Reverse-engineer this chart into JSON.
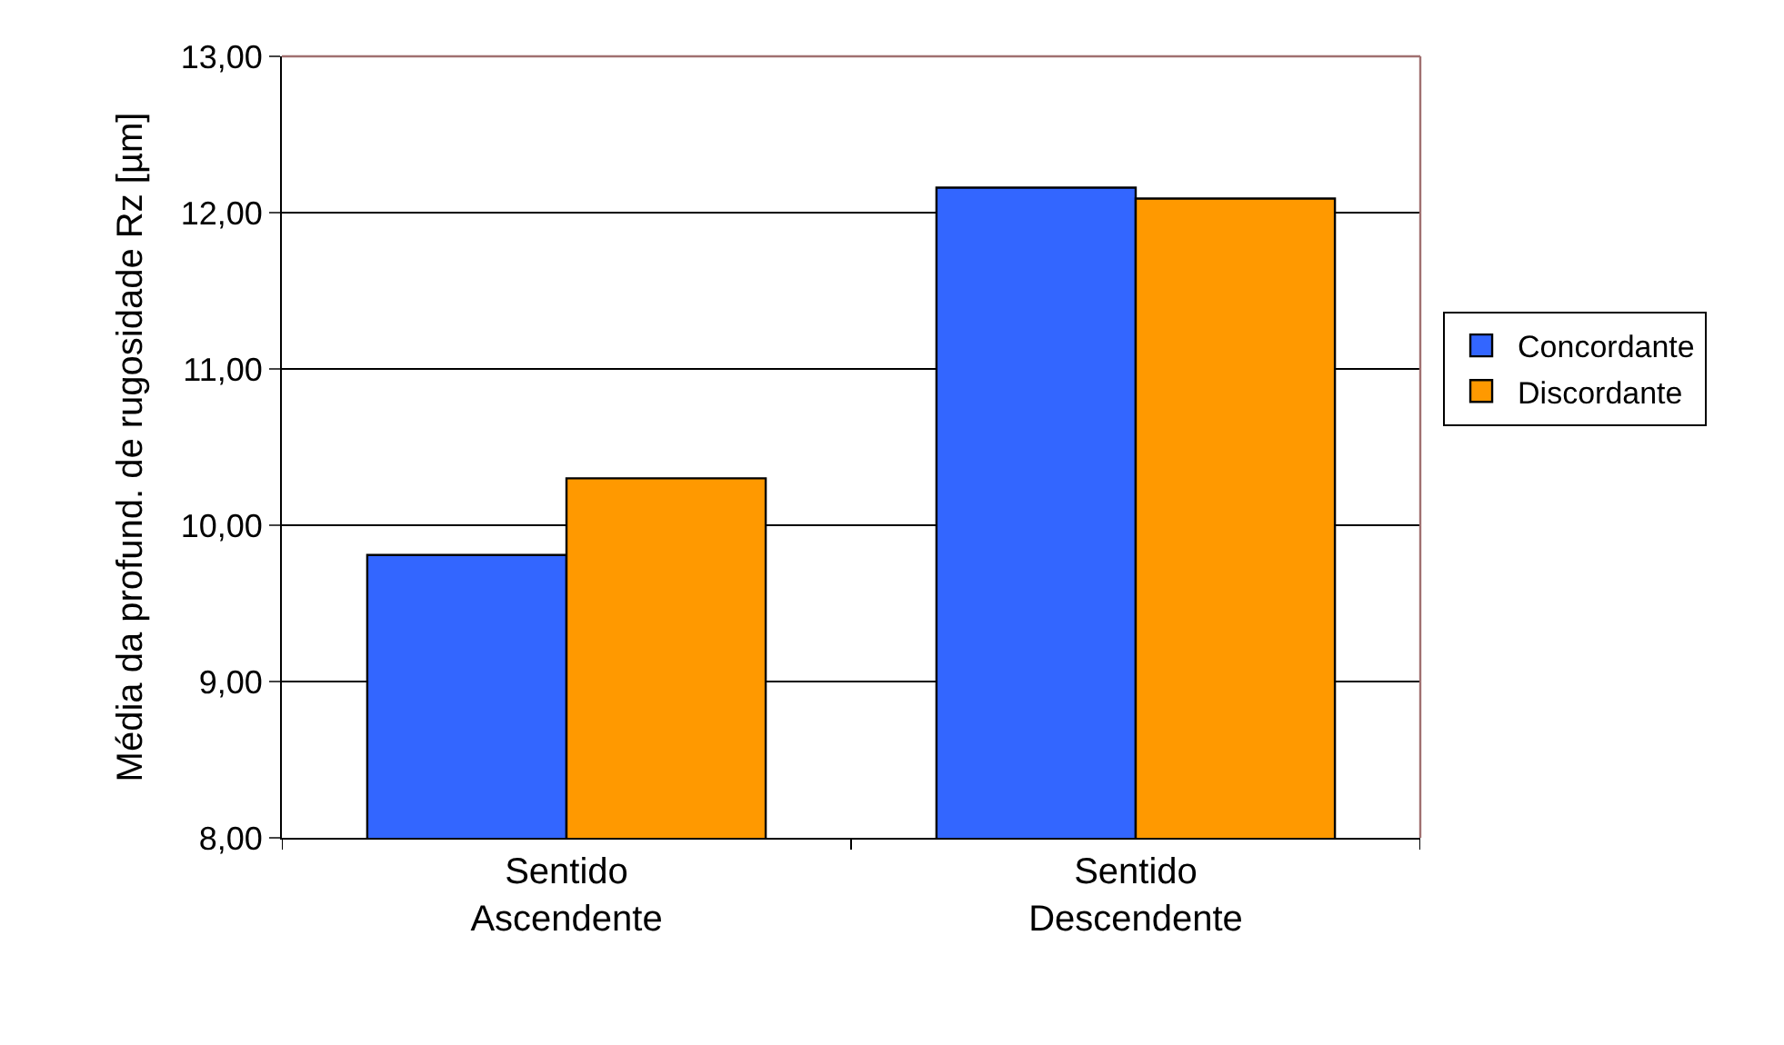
{
  "chart_data": {
    "type": "bar",
    "categories": [
      "Sentido\nAscendente",
      "Sentido\nDescendente"
    ],
    "series": [
      {
        "name": "Concordante",
        "color": "#3366ff",
        "values": [
          9.81,
          12.16
        ]
      },
      {
        "name": "Discordante",
        "color": "#ff9900",
        "values": [
          10.3,
          12.09
        ]
      }
    ],
    "ylabel": "Média da profund. de rugosidade Rz [µm]",
    "ylim": [
      8,
      13
    ],
    "yticks": [
      {
        "value": 8,
        "label": "8,00"
      },
      {
        "value": 9,
        "label": "9,00"
      },
      {
        "value": 10,
        "label": "10,00"
      },
      {
        "value": 11,
        "label": "11,00"
      },
      {
        "value": 12,
        "label": "12,00"
      },
      {
        "value": 13,
        "label": "13,00"
      }
    ],
    "grid": "y",
    "legend": "right"
  }
}
